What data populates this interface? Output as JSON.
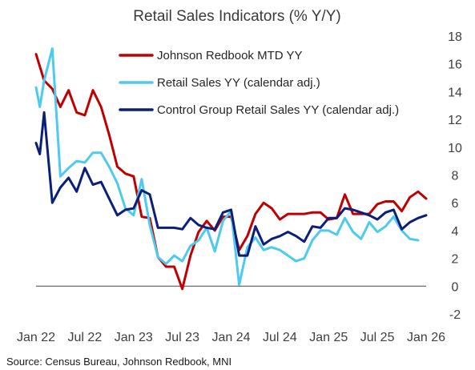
{
  "chart_data": {
    "type": "line",
    "title": "Retail Sales Indicators (% Y/Y)",
    "source": "Source: Census Bureau, Johnson Redbook, MNI",
    "xlabel": "",
    "ylabel": "",
    "grid": false,
    "legend_position": "top-left",
    "y_axis_position": "right",
    "ylim": [
      -2,
      18
    ],
    "y_ticks": [
      -2,
      0,
      2,
      4,
      6,
      8,
      10,
      12,
      14,
      16,
      18
    ],
    "xlim": [
      "2022-01",
      "2026-01"
    ],
    "x_ticks": [
      {
        "label": "Jan 22",
        "date": "2022-01"
      },
      {
        "label": "Jul 22",
        "date": "2022-07"
      },
      {
        "label": "Jan 23",
        "date": "2023-01"
      },
      {
        "label": "Jul 23",
        "date": "2023-07"
      },
      {
        "label": "Jan 24",
        "date": "2024-01"
      },
      {
        "label": "Jul 24",
        "date": "2024-07"
      },
      {
        "label": "Jan 25",
        "date": "2025-01"
      },
      {
        "label": "Jul 25",
        "date": "2025-07"
      },
      {
        "label": "Jan 26",
        "date": "2026-01"
      }
    ],
    "series": [
      {
        "name": "Johnson Redbook MTD YY",
        "color": "#c00000",
        "points": [
          [
            "2022-01",
            16.7
          ],
          [
            "2022-02",
            14.8
          ],
          [
            "2022-03",
            14.2
          ],
          [
            "2022-04",
            12.9
          ],
          [
            "2022-05",
            14.1
          ],
          [
            "2022-06",
            12.5
          ],
          [
            "2022-07",
            12.3
          ],
          [
            "2022-08",
            14.1
          ],
          [
            "2022-09",
            12.9
          ],
          [
            "2022-10",
            10.9
          ],
          [
            "2022-11",
            8.6
          ],
          [
            "2022-12",
            8.1
          ],
          [
            "2023-01",
            7.9
          ],
          [
            "2023-02",
            5.0
          ],
          [
            "2023-03",
            4.9
          ],
          [
            "2023-04",
            2.1
          ],
          [
            "2023-05",
            1.4
          ],
          [
            "2023-06",
            1.4
          ],
          [
            "2023-07",
            -0.2
          ],
          [
            "2023-08",
            2.2
          ],
          [
            "2023-09",
            3.9
          ],
          [
            "2023-10",
            4.7
          ],
          [
            "2023-11",
            4.0
          ],
          [
            "2023-12",
            5.0
          ],
          [
            "2024-01",
            5.0
          ],
          [
            "2024-02",
            2.6
          ],
          [
            "2024-03",
            3.6
          ],
          [
            "2024-04",
            5.2
          ],
          [
            "2024-05",
            6.0
          ],
          [
            "2024-06",
            5.6
          ],
          [
            "2024-07",
            4.8
          ],
          [
            "2024-08",
            5.2
          ],
          [
            "2024-09",
            5.2
          ],
          [
            "2024-10",
            5.2
          ],
          [
            "2024-11",
            5.3
          ],
          [
            "2024-12",
            5.3
          ],
          [
            "2025-01",
            4.8
          ],
          [
            "2025-02",
            4.9
          ],
          [
            "2025-03",
            6.6
          ],
          [
            "2025-04",
            5.2
          ],
          [
            "2025-05",
            5.2
          ],
          [
            "2025-06",
            5.2
          ],
          [
            "2025-07",
            5.9
          ],
          [
            "2025-08",
            6.1
          ],
          [
            "2025-09",
            6.1
          ],
          [
            "2025-10",
            5.4
          ],
          [
            "2025-11",
            6.4
          ],
          [
            "2025-12",
            6.8
          ],
          [
            "2026-01",
            6.3
          ]
        ]
      },
      {
        "name": "Retail Sales YY (calendar adj.)",
        "color": "#4dcaf0",
        "points": [
          [
            "2022-01",
            14.3
          ],
          [
            "2022-01-15",
            12.9
          ],
          [
            "2022-02",
            14.8
          ],
          [
            "2022-03",
            17.1
          ],
          [
            "2022-04",
            7.9
          ],
          [
            "2022-05",
            8.5
          ],
          [
            "2022-06",
            9.0
          ],
          [
            "2022-07",
            8.9
          ],
          [
            "2022-08",
            9.6
          ],
          [
            "2022-09",
            9.6
          ],
          [
            "2022-10",
            8.6
          ],
          [
            "2022-11",
            7.4
          ],
          [
            "2022-12",
            5.6
          ],
          [
            "2023-01",
            5.1
          ],
          [
            "2023-02",
            7.7
          ],
          [
            "2023-03",
            4.4
          ],
          [
            "2023-04",
            2.1
          ],
          [
            "2023-05",
            1.6
          ],
          [
            "2023-06",
            2.2
          ],
          [
            "2023-07",
            1.8
          ],
          [
            "2023-08",
            2.9
          ],
          [
            "2023-09",
            3.3
          ],
          [
            "2023-10",
            4.2
          ],
          [
            "2023-11",
            2.5
          ],
          [
            "2023-12",
            4.7
          ],
          [
            "2024-01",
            5.4
          ],
          [
            "2024-02",
            0.1
          ],
          [
            "2024-03",
            2.8
          ],
          [
            "2024-04",
            3.5
          ],
          [
            "2024-05",
            2.6
          ],
          [
            "2024-06",
            2.8
          ],
          [
            "2024-07",
            2.6
          ],
          [
            "2024-08",
            2.2
          ],
          [
            "2024-09",
            1.8
          ],
          [
            "2024-10",
            2.0
          ],
          [
            "2024-11",
            3.3
          ],
          [
            "2024-12",
            4.0
          ],
          [
            "2025-01",
            4.0
          ],
          [
            "2025-02",
            3.7
          ],
          [
            "2025-03",
            4.9
          ],
          [
            "2025-04",
            3.9
          ],
          [
            "2025-05",
            3.4
          ],
          [
            "2025-06",
            4.6
          ],
          [
            "2025-07",
            3.9
          ],
          [
            "2025-08",
            4.3
          ],
          [
            "2025-09",
            5.0
          ],
          [
            "2025-10",
            4.0
          ],
          [
            "2025-11",
            3.4
          ],
          [
            "2025-12",
            3.3
          ]
        ]
      },
      {
        "name": "Control Group Retail Sales YY (calendar adj.)",
        "color": "#0a1e7a",
        "points": [
          [
            "2022-01",
            10.3
          ],
          [
            "2022-01-15",
            9.5
          ],
          [
            "2022-02",
            12.5
          ],
          [
            "2022-03",
            6.0
          ],
          [
            "2022-04",
            7.1
          ],
          [
            "2022-05",
            7.8
          ],
          [
            "2022-06",
            6.8
          ],
          [
            "2022-07",
            8.5
          ],
          [
            "2022-08",
            7.3
          ],
          [
            "2022-09",
            7.5
          ],
          [
            "2022-10",
            6.3
          ],
          [
            "2022-11",
            5.1
          ],
          [
            "2022-12",
            5.5
          ],
          [
            "2023-01",
            5.6
          ],
          [
            "2023-02",
            6.9
          ],
          [
            "2023-03",
            6.6
          ],
          [
            "2023-04",
            4.2
          ],
          [
            "2023-05",
            4.2
          ],
          [
            "2023-06",
            4.2
          ],
          [
            "2023-07",
            4.1
          ],
          [
            "2023-08",
            4.9
          ],
          [
            "2023-09",
            4.4
          ],
          [
            "2023-10",
            4.2
          ],
          [
            "2023-11",
            4.1
          ],
          [
            "2023-12",
            5.3
          ],
          [
            "2024-01",
            5.5
          ],
          [
            "2024-02",
            2.2
          ],
          [
            "2024-03",
            2.2
          ],
          [
            "2024-04",
            4.3
          ],
          [
            "2024-05",
            3.0
          ],
          [
            "2024-06",
            3.4
          ],
          [
            "2024-07",
            3.6
          ],
          [
            "2024-08",
            3.9
          ],
          [
            "2024-09",
            3.6
          ],
          [
            "2024-10",
            3.2
          ],
          [
            "2024-11",
            4.3
          ],
          [
            "2024-12",
            4.2
          ],
          [
            "2025-01",
            4.9
          ],
          [
            "2025-02",
            4.9
          ],
          [
            "2025-03",
            5.6
          ],
          [
            "2025-04",
            5.5
          ],
          [
            "2025-05",
            5.3
          ],
          [
            "2025-06",
            5.1
          ],
          [
            "2025-07",
            4.8
          ],
          [
            "2025-08",
            5.3
          ],
          [
            "2025-09",
            5.5
          ],
          [
            "2025-10",
            4.1
          ],
          [
            "2025-11",
            4.6
          ],
          [
            "2025-12",
            4.9
          ],
          [
            "2026-01",
            5.1
          ]
        ]
      }
    ]
  }
}
